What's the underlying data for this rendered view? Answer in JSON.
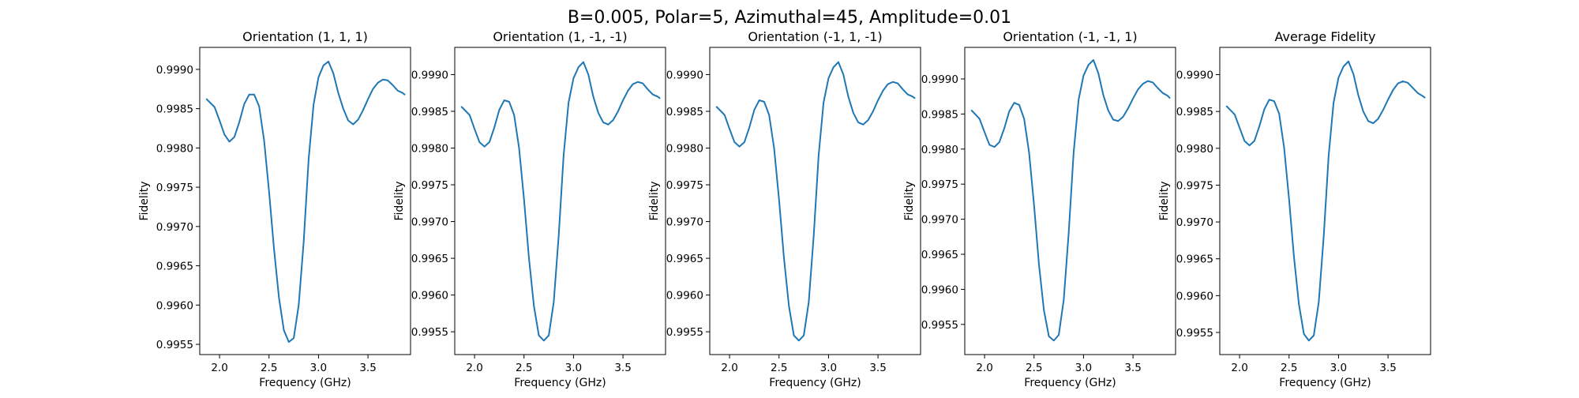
{
  "figure": {
    "suptitle": "B=0.005, Polar=5, Azimuthal=45, Amplitude=0.01",
    "background": "#ffffff",
    "line_color": "#1f77b4"
  },
  "chart_data": [
    {
      "type": "line",
      "title": "Orientation (1, 1, 1)",
      "xlabel": "Frequency (GHz)",
      "ylabel": "Fidelity",
      "xlim": [
        1.8,
        3.93
      ],
      "ylim": [
        0.99537,
        0.99928
      ],
      "xticks": [
        2.0,
        2.5,
        3.0,
        3.5
      ],
      "xtick_labels": [
        "2.0",
        "2.5",
        "3.0",
        "3.5"
      ],
      "yticks": [
        0.9955,
        0.996,
        0.9965,
        0.997,
        0.9975,
        0.998,
        0.9985,
        0.999
      ],
      "ytick_labels": [
        "0.9955",
        "0.9960",
        "0.9965",
        "0.9970",
        "0.9975",
        "0.9980",
        "0.9985",
        "0.9990"
      ],
      "series": [
        {
          "x": [
            1.87,
            1.95,
            2.0,
            2.05,
            2.1,
            2.15,
            2.2,
            2.25,
            2.3,
            2.35,
            2.4,
            2.45,
            2.5,
            2.55,
            2.6,
            2.65,
            2.7,
            2.75,
            2.8,
            2.85,
            2.9,
            2.95,
            3.0,
            3.05,
            3.1,
            3.15,
            3.2,
            3.25,
            3.3,
            3.35,
            3.4,
            3.45,
            3.5,
            3.55,
            3.6,
            3.65,
            3.7,
            3.75,
            3.8,
            3.85,
            3.87
          ],
          "y": [
            0.99862,
            0.99852,
            0.99835,
            0.99817,
            0.99808,
            0.99814,
            0.99833,
            0.99856,
            0.99868,
            0.99868,
            0.99853,
            0.9981,
            0.99745,
            0.99672,
            0.9961,
            0.99568,
            0.99553,
            0.99558,
            0.996,
            0.9968,
            0.99785,
            0.99855,
            0.9989,
            0.99905,
            0.9991,
            0.99895,
            0.9987,
            0.9985,
            0.99835,
            0.9983,
            0.99836,
            0.99848,
            0.99862,
            0.99875,
            0.99883,
            0.99887,
            0.99886,
            0.9988,
            0.99873,
            0.9987,
            0.99868
          ]
        }
      ]
    },
    {
      "type": "line",
      "title": "Orientation (1, -1, -1)",
      "xlabel": "Frequency (GHz)",
      "ylabel": "Fidelity",
      "xlim": [
        1.8,
        3.93
      ],
      "ylim": [
        0.99519,
        0.99937
      ],
      "xticks": [
        2.0,
        2.5,
        3.0,
        3.5
      ],
      "xtick_labels": [
        "2.0",
        "2.5",
        "3.0",
        "3.5"
      ],
      "yticks": [
        0.9955,
        0.996,
        0.9965,
        0.997,
        0.9975,
        0.998,
        0.9985,
        0.999
      ],
      "ytick_labels": [
        "0.9955",
        "0.9960",
        "0.9965",
        "0.9970",
        "0.9975",
        "0.9980",
        "0.9985",
        "0.9990"
      ],
      "series": [
        {
          "x": [
            1.87,
            1.95,
            2.0,
            2.05,
            2.1,
            2.15,
            2.2,
            2.25,
            2.3,
            2.35,
            2.4,
            2.45,
            2.5,
            2.55,
            2.6,
            2.65,
            2.7,
            2.75,
            2.8,
            2.85,
            2.9,
            2.95,
            3.0,
            3.05,
            3.1,
            3.15,
            3.2,
            3.25,
            3.3,
            3.35,
            3.4,
            3.45,
            3.5,
            3.55,
            3.6,
            3.65,
            3.7,
            3.75,
            3.8,
            3.85,
            3.87
          ],
          "y": [
            0.99856,
            0.99845,
            0.99826,
            0.99808,
            0.99802,
            0.99808,
            0.99828,
            0.99852,
            0.99865,
            0.99863,
            0.99845,
            0.998,
            0.9973,
            0.9965,
            0.99585,
            0.99545,
            0.99538,
            0.99545,
            0.9959,
            0.9968,
            0.9979,
            0.99862,
            0.99895,
            0.9991,
            0.99917,
            0.999,
            0.9987,
            0.99848,
            0.99835,
            0.99832,
            0.99838,
            0.9985,
            0.99865,
            0.99878,
            0.99887,
            0.9989,
            0.99888,
            0.9988,
            0.99873,
            0.9987,
            0.99868
          ]
        }
      ]
    },
    {
      "type": "line",
      "title": "Orientation (-1, 1, -1)",
      "xlabel": "Frequency (GHz)",
      "ylabel": "Fidelity",
      "xlim": [
        1.8,
        3.93
      ],
      "ylim": [
        0.99519,
        0.99937
      ],
      "xticks": [
        2.0,
        2.5,
        3.0,
        3.5
      ],
      "xtick_labels": [
        "2.0",
        "2.5",
        "3.0",
        "3.5"
      ],
      "yticks": [
        0.9955,
        0.996,
        0.9965,
        0.997,
        0.9975,
        0.998,
        0.9985,
        0.999
      ],
      "ytick_labels": [
        "0.9955",
        "0.9960",
        "0.9965",
        "0.9970",
        "0.9975",
        "0.9980",
        "0.9985",
        "0.9990"
      ],
      "series": [
        {
          "x": [
            1.87,
            1.95,
            2.0,
            2.05,
            2.1,
            2.15,
            2.2,
            2.25,
            2.3,
            2.35,
            2.4,
            2.45,
            2.5,
            2.55,
            2.6,
            2.65,
            2.7,
            2.75,
            2.8,
            2.85,
            2.9,
            2.95,
            3.0,
            3.05,
            3.1,
            3.15,
            3.2,
            3.25,
            3.3,
            3.35,
            3.4,
            3.45,
            3.5,
            3.55,
            3.6,
            3.65,
            3.7,
            3.75,
            3.8,
            3.85,
            3.87
          ],
          "y": [
            0.99856,
            0.99845,
            0.99826,
            0.99808,
            0.99802,
            0.99808,
            0.99828,
            0.99852,
            0.99865,
            0.99863,
            0.99845,
            0.998,
            0.9973,
            0.9965,
            0.99585,
            0.99545,
            0.99538,
            0.99545,
            0.9959,
            0.9968,
            0.9979,
            0.99862,
            0.99895,
            0.9991,
            0.99917,
            0.999,
            0.9987,
            0.99848,
            0.99835,
            0.99832,
            0.99838,
            0.9985,
            0.99865,
            0.99878,
            0.99887,
            0.9989,
            0.99888,
            0.9988,
            0.99873,
            0.9987,
            0.99868
          ]
        }
      ]
    },
    {
      "type": "line",
      "title": "Orientation (-1, -1, 1)",
      "xlabel": "Frequency (GHz)",
      "ylabel": "Fidelity",
      "xlim": [
        1.8,
        3.93
      ],
      "ylim": [
        0.99507,
        0.99945
      ],
      "xticks": [
        2.0,
        2.5,
        3.0,
        3.5
      ],
      "xtick_labels": [
        "2.0",
        "2.5",
        "3.0",
        "3.5"
      ],
      "yticks": [
        0.9955,
        0.996,
        0.9965,
        0.997,
        0.9975,
        0.998,
        0.9985,
        0.999
      ],
      "ytick_labels": [
        "0.9955",
        "0.9960",
        "0.9965",
        "0.9970",
        "0.9975",
        "0.9980",
        "0.9985",
        "0.9990"
      ],
      "series": [
        {
          "x": [
            1.87,
            1.95,
            2.0,
            2.05,
            2.1,
            2.15,
            2.2,
            2.25,
            2.3,
            2.35,
            2.4,
            2.45,
            2.5,
            2.55,
            2.6,
            2.65,
            2.7,
            2.75,
            2.8,
            2.85,
            2.9,
            2.95,
            3.0,
            3.05,
            3.1,
            3.15,
            3.2,
            3.25,
            3.3,
            3.35,
            3.4,
            3.45,
            3.5,
            3.55,
            3.6,
            3.65,
            3.7,
            3.75,
            3.8,
            3.85,
            3.87
          ],
          "y": [
            0.99855,
            0.99843,
            0.99824,
            0.99806,
            0.99803,
            0.9981,
            0.9983,
            0.99854,
            0.99866,
            0.99863,
            0.99843,
            0.99795,
            0.9972,
            0.99635,
            0.9957,
            0.99533,
            0.99527,
            0.99535,
            0.99585,
            0.9968,
            0.99795,
            0.9987,
            0.99905,
            0.9992,
            0.99927,
            0.99908,
            0.99877,
            0.99855,
            0.99842,
            0.9984,
            0.99846,
            0.99858,
            0.99872,
            0.99885,
            0.99893,
            0.99897,
            0.99895,
            0.99887,
            0.9988,
            0.99876,
            0.99873
          ]
        }
      ]
    },
    {
      "type": "line",
      "title": "Average Fidelity",
      "xlabel": "Frequency (GHz)",
      "ylabel": "Fidelity",
      "xlim": [
        1.8,
        3.93
      ],
      "ylim": [
        0.9952,
        0.99937
      ],
      "xticks": [
        2.0,
        2.5,
        3.0,
        3.5
      ],
      "xtick_labels": [
        "2.0",
        "2.5",
        "3.0",
        "3.5"
      ],
      "yticks": [
        0.9955,
        0.996,
        0.9965,
        0.997,
        0.9975,
        0.998,
        0.9985,
        0.999
      ],
      "ytick_labels": [
        "0.9955",
        "0.9960",
        "0.9965",
        "0.9970",
        "0.9975",
        "0.9980",
        "0.9985",
        "0.9990"
      ],
      "series": [
        {
          "x": [
            1.87,
            1.95,
            2.0,
            2.05,
            2.1,
            2.15,
            2.2,
            2.25,
            2.3,
            2.35,
            2.4,
            2.45,
            2.5,
            2.55,
            2.6,
            2.65,
            2.7,
            2.75,
            2.8,
            2.85,
            2.9,
            2.95,
            3.0,
            3.05,
            3.1,
            3.15,
            3.2,
            3.25,
            3.3,
            3.35,
            3.4,
            3.45,
            3.5,
            3.55,
            3.6,
            3.65,
            3.7,
            3.75,
            3.8,
            3.85,
            3.87
          ],
          "y": [
            0.99857,
            0.99846,
            0.99828,
            0.9981,
            0.99804,
            0.9981,
            0.9983,
            0.99853,
            0.99866,
            0.99864,
            0.99847,
            0.99801,
            0.99731,
            0.99652,
            0.99588,
            0.99548,
            0.99539,
            0.99546,
            0.99591,
            0.9968,
            0.9979,
            0.99862,
            0.99896,
            0.99911,
            0.99918,
            0.99901,
            0.99872,
            0.9985,
            0.99837,
            0.99834,
            0.9984,
            0.99852,
            0.99866,
            0.99879,
            0.99888,
            0.99891,
            0.99889,
            0.99882,
            0.99875,
            0.99871,
            0.99869
          ]
        }
      ]
    }
  ]
}
